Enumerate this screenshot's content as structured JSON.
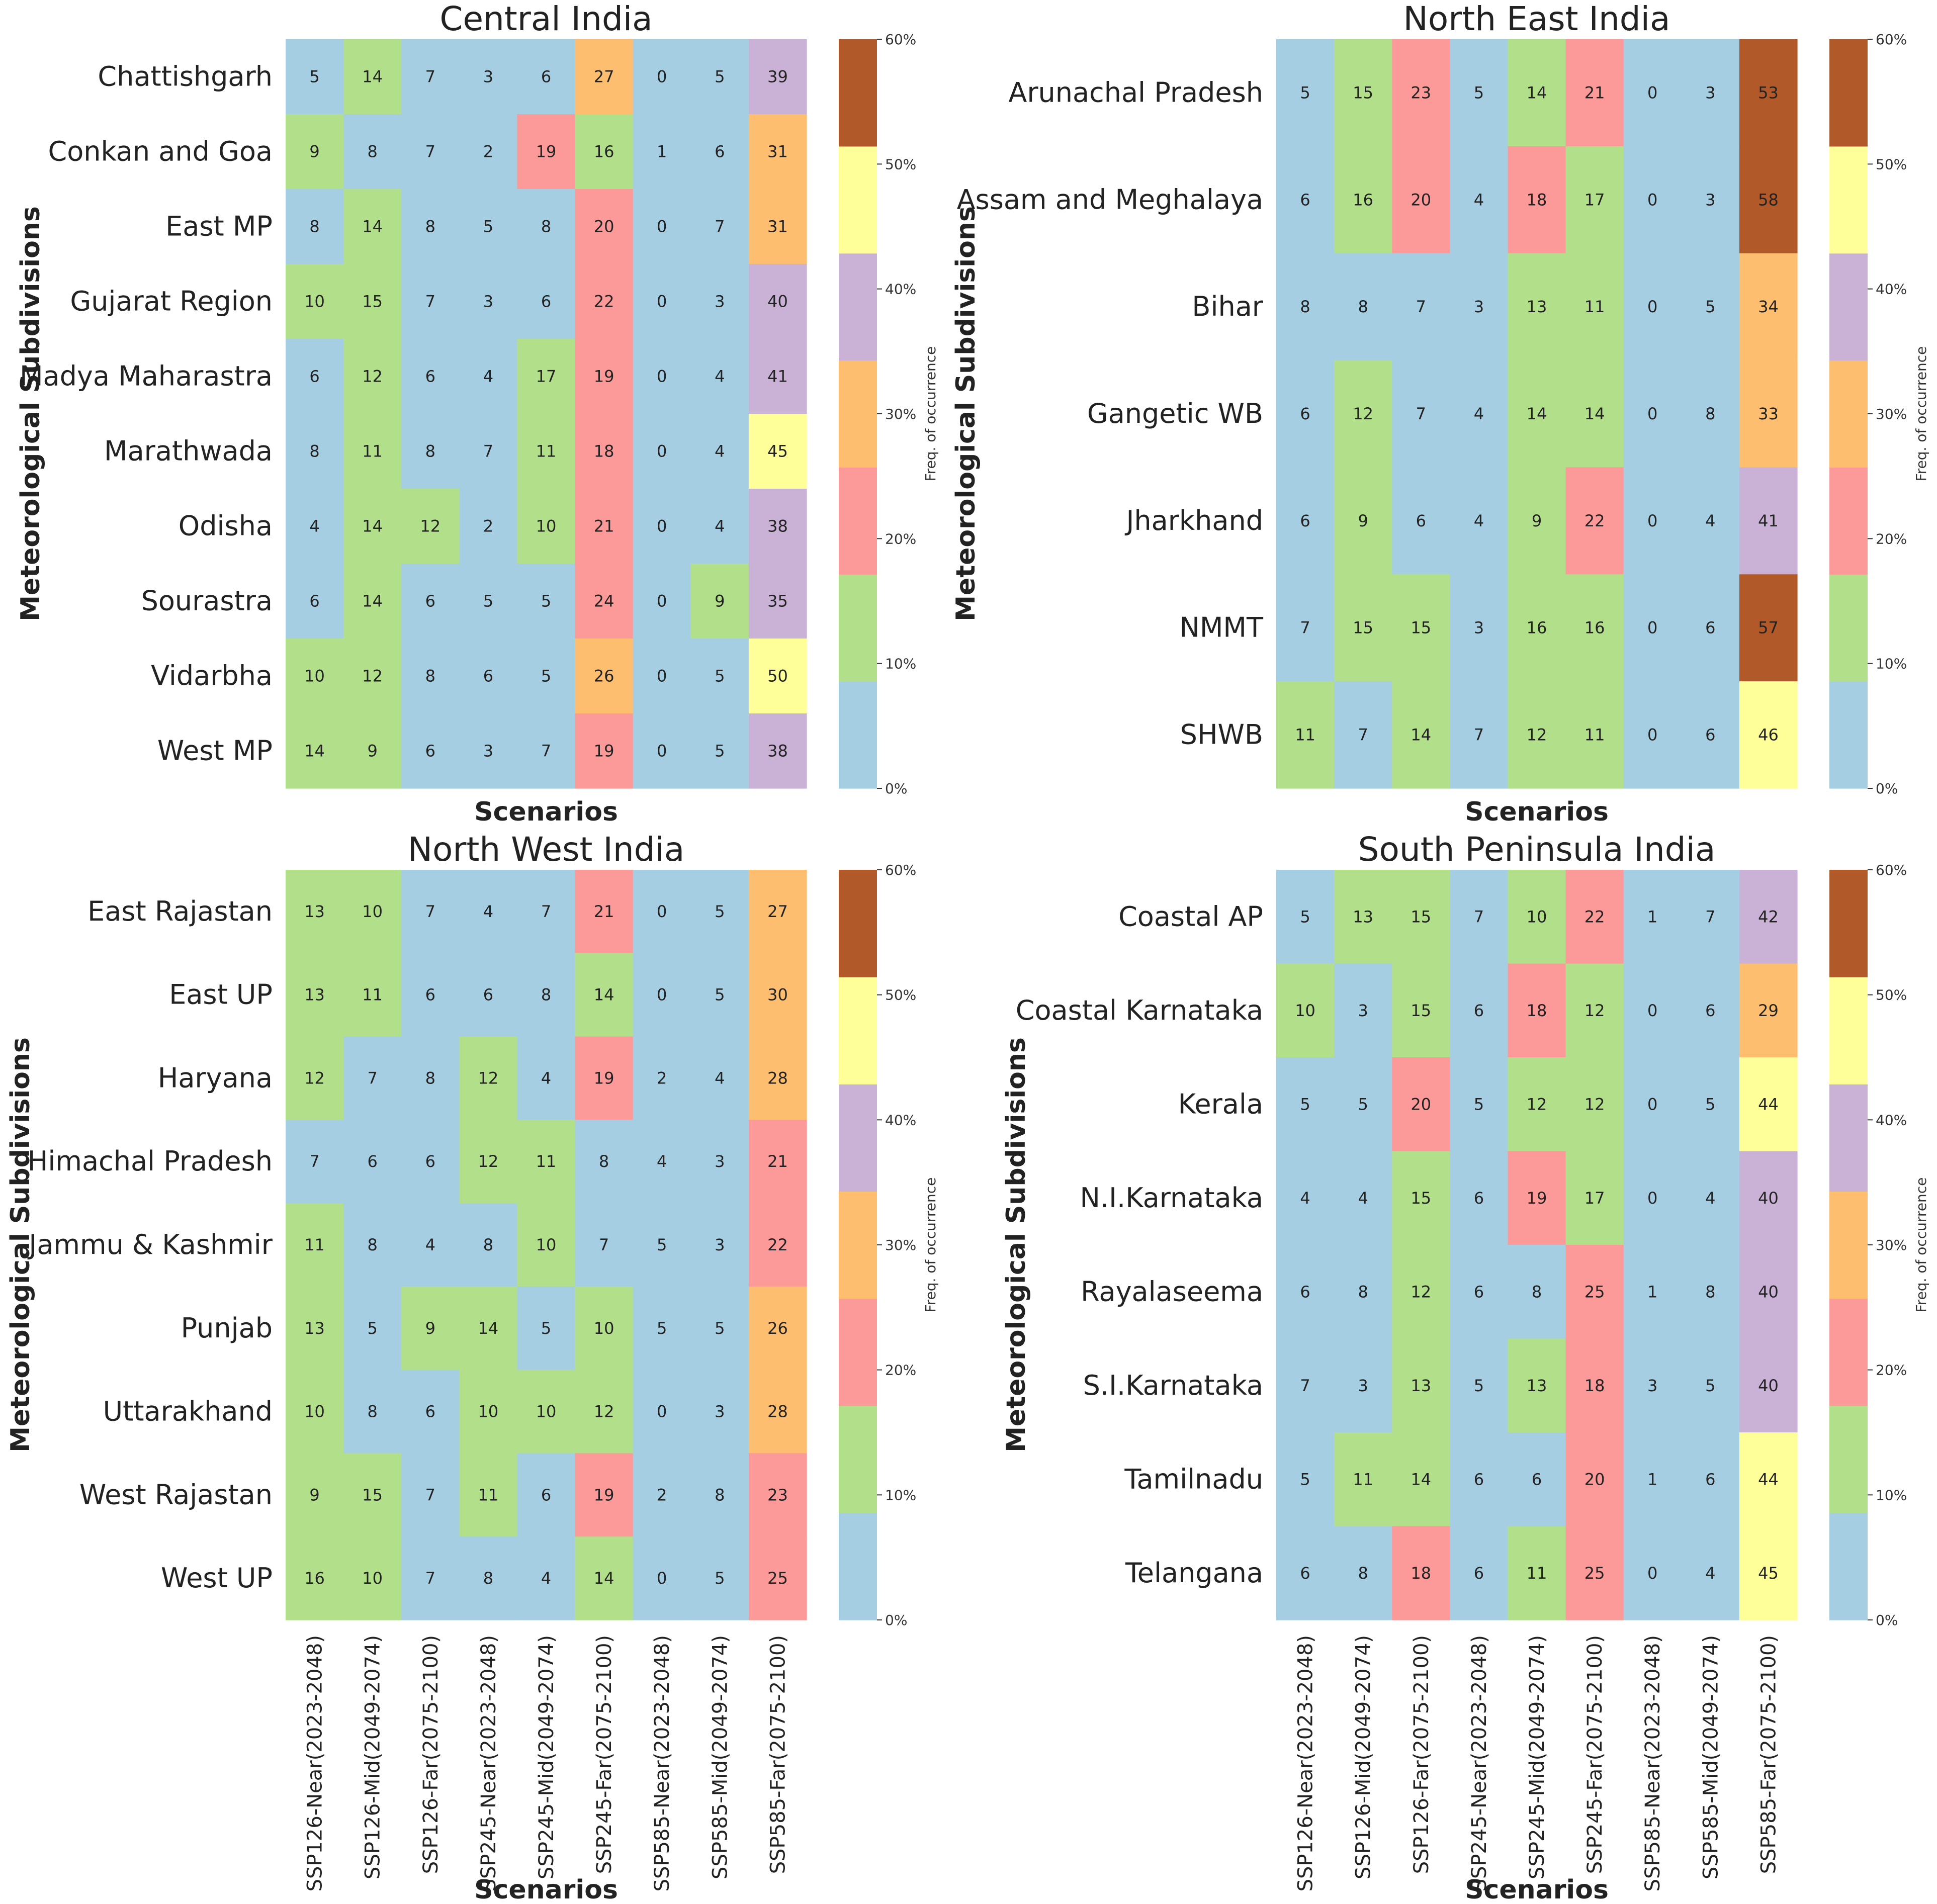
{
  "figure": {
    "type": "heatmap_grid",
    "panel_count": 4
  },
  "colorbar": {
    "label": "Freq. of occurrence",
    "ticks": [
      "0%",
      "10%",
      "20%",
      "30%",
      "40%",
      "50%",
      "60%"
    ],
    "range": [
      0,
      60
    ],
    "bins": [
      {
        "from": 0,
        "to": 8.57,
        "color": "#a6cee3"
      },
      {
        "from": 8.57,
        "to": 17.14,
        "color": "#b2df8a"
      },
      {
        "from": 17.14,
        "to": 25.71,
        "color": "#fb9a99"
      },
      {
        "from": 25.71,
        "to": 34.29,
        "color": "#fdbf6f"
      },
      {
        "from": 34.29,
        "to": 42.86,
        "color": "#cab2d6"
      },
      {
        "from": 42.86,
        "to": 51.43,
        "color": "#ffff99"
      },
      {
        "from": 51.43,
        "to": 60,
        "color": "#b15928"
      }
    ]
  },
  "chart_data": [
    {
      "type": "heatmap",
      "title": "Central India",
      "xlabel": "Scenarios",
      "ylabel": "Meteorological Subdivisions",
      "show_xticks": false,
      "x": [
        "SSP126-Near(2023-2048)",
        "SSP126-Mid(2049-2074)",
        "SSP126-Far(2075-2100)",
        "SSP245-Near(2023-2048)",
        "SSP245-Mid(2049-2074)",
        "SSP245-Far(2075-2100)",
        "SSP585-Near(2023-2048)",
        "SSP585-Mid(2049-2074)",
        "SSP585-Far(2075-2100)"
      ],
      "y": [
        "Chattishgarh",
        "Conkan and Goa",
        "East MP",
        "Gujarat Region",
        "Madya Maharastra",
        "Marathwada",
        "Odisha",
        "Sourastra",
        "Vidarbha",
        "West MP"
      ],
      "values": [
        [
          5,
          14,
          7,
          3,
          6,
          27,
          0,
          5,
          39
        ],
        [
          9,
          8,
          7,
          2,
          19,
          16,
          1,
          6,
          31
        ],
        [
          8,
          14,
          8,
          5,
          8,
          20,
          0,
          7,
          31
        ],
        [
          10,
          15,
          7,
          3,
          6,
          22,
          0,
          3,
          40
        ],
        [
          6,
          12,
          6,
          4,
          17,
          19,
          0,
          4,
          41
        ],
        [
          8,
          11,
          8,
          7,
          11,
          18,
          0,
          4,
          45
        ],
        [
          4,
          14,
          12,
          2,
          10,
          21,
          0,
          4,
          38
        ],
        [
          6,
          14,
          6,
          5,
          5,
          24,
          0,
          9,
          35
        ],
        [
          10,
          12,
          8,
          6,
          5,
          26,
          0,
          5,
          50
        ],
        [
          14,
          9,
          6,
          3,
          7,
          19,
          0,
          5,
          38
        ]
      ]
    },
    {
      "type": "heatmap",
      "title": "North East India",
      "xlabel": "Scenarios",
      "ylabel": "Meteorological Subdivisions",
      "show_xticks": false,
      "x": [
        "SSP126-Near(2023-2048)",
        "SSP126-Mid(2049-2074)",
        "SSP126-Far(2075-2100)",
        "SSP245-Near(2023-2048)",
        "SSP245-Mid(2049-2074)",
        "SSP245-Far(2075-2100)",
        "SSP585-Near(2023-2048)",
        "SSP585-Mid(2049-2074)",
        "SSP585-Far(2075-2100)"
      ],
      "y": [
        "Arunachal Pradesh",
        "Assam and Meghalaya",
        "Bihar",
        "Gangetic WB",
        "Jharkhand",
        "NMMT",
        "SHWB"
      ],
      "values": [
        [
          5,
          15,
          23,
          5,
          14,
          21,
          0,
          3,
          53
        ],
        [
          6,
          16,
          20,
          4,
          18,
          17,
          0,
          3,
          58
        ],
        [
          8,
          8,
          7,
          3,
          13,
          11,
          0,
          5,
          34
        ],
        [
          6,
          12,
          7,
          4,
          14,
          14,
          0,
          8,
          33
        ],
        [
          6,
          9,
          6,
          4,
          9,
          22,
          0,
          4,
          41
        ],
        [
          7,
          15,
          15,
          3,
          16,
          16,
          0,
          6,
          57
        ],
        [
          11,
          7,
          14,
          7,
          12,
          11,
          0,
          6,
          46
        ]
      ]
    },
    {
      "type": "heatmap",
      "title": "North West India",
      "xlabel": "Scenarios",
      "ylabel": "Meteorological Subdivisions",
      "show_xticks": true,
      "x": [
        "SSP126-Near(2023-2048)",
        "SSP126-Mid(2049-2074)",
        "SSP126-Far(2075-2100)",
        "SSP245-Near(2023-2048)",
        "SSP245-Mid(2049-2074)",
        "SSP245-Far(2075-2100)",
        "SSP585-Near(2023-2048)",
        "SSP585-Mid(2049-2074)",
        "SSP585-Far(2075-2100)"
      ],
      "y": [
        "East Rajastan",
        "East UP",
        "Haryana",
        "Himachal Pradesh",
        "Jammu & Kashmir",
        "Punjab",
        "Uttarakhand",
        "West Rajastan",
        "West UP"
      ],
      "values": [
        [
          13,
          10,
          7,
          4,
          7,
          21,
          0,
          5,
          27
        ],
        [
          13,
          11,
          6,
          6,
          8,
          14,
          0,
          5,
          30
        ],
        [
          12,
          7,
          8,
          12,
          4,
          19,
          2,
          4,
          28
        ],
        [
          7,
          6,
          6,
          12,
          11,
          8,
          4,
          3,
          21
        ],
        [
          11,
          8,
          4,
          8,
          10,
          7,
          5,
          3,
          22
        ],
        [
          13,
          5,
          9,
          14,
          5,
          10,
          5,
          5,
          26
        ],
        [
          10,
          8,
          6,
          10,
          10,
          12,
          0,
          3,
          28
        ],
        [
          9,
          15,
          7,
          11,
          6,
          19,
          2,
          8,
          23
        ],
        [
          16,
          10,
          7,
          8,
          4,
          14,
          0,
          5,
          25
        ]
      ]
    },
    {
      "type": "heatmap",
      "title": "South Peninsula India",
      "xlabel": "Scenarios",
      "ylabel": "Meteorological Subdivisions",
      "show_xticks": true,
      "x": [
        "SSP126-Near(2023-2048)",
        "SSP126-Mid(2049-2074)",
        "SSP126-Far(2075-2100)",
        "SSP245-Near(2023-2048)",
        "SSP245-Mid(2049-2074)",
        "SSP245-Far(2075-2100)",
        "SSP585-Near(2023-2048)",
        "SSP585-Mid(2049-2074)",
        "SSP585-Far(2075-2100)"
      ],
      "y": [
        "Coastal AP",
        "Coastal Karnataka",
        "Kerala",
        "N.I.Karnataka",
        "Rayalaseema",
        "S.I.Karnataka",
        "Tamilnadu",
        "Telangana"
      ],
      "values": [
        [
          5,
          13,
          15,
          7,
          10,
          22,
          1,
          7,
          42
        ],
        [
          10,
          3,
          15,
          6,
          18,
          12,
          0,
          6,
          29
        ],
        [
          5,
          5,
          20,
          5,
          12,
          12,
          0,
          5,
          44
        ],
        [
          4,
          4,
          15,
          6,
          19,
          17,
          0,
          4,
          40
        ],
        [
          6,
          8,
          12,
          6,
          8,
          25,
          1,
          8,
          40
        ],
        [
          7,
          3,
          13,
          5,
          13,
          18,
          3,
          5,
          40
        ],
        [
          5,
          11,
          14,
          6,
          6,
          20,
          1,
          6,
          44
        ],
        [
          6,
          8,
          18,
          6,
          11,
          25,
          0,
          4,
          45
        ]
      ]
    }
  ]
}
